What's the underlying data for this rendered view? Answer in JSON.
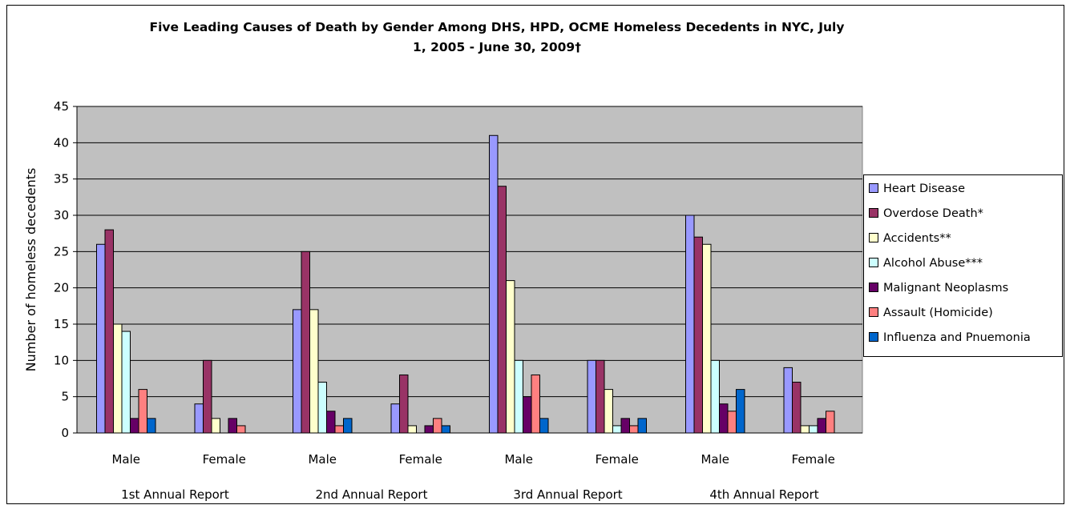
{
  "chart_data": {
    "type": "bar",
    "title_line1": "Five Leading Causes of Death by Gender Among DHS, HPD, OCME Homeless Decedents in NYC, July",
    "title_line2": "1, 2005 -  June 30, 2009†",
    "ylabel": "Number of homeless decedents",
    "xlabel": "",
    "ylim": [
      0,
      45
    ],
    "yticks": [
      0,
      5,
      10,
      15,
      20,
      25,
      30,
      35,
      40,
      45
    ],
    "grid": true,
    "legend_position": "right",
    "groups": [
      "1st Annual Report",
      "2nd Annual Report",
      "3rd Annual Report",
      "4th Annual Report"
    ],
    "subcategories": [
      "Male",
      "Female"
    ],
    "series": [
      {
        "name": "Heart Disease",
        "color": "#9999ff",
        "values": [
          [
            26,
            4
          ],
          [
            17,
            4
          ],
          [
            41,
            10
          ],
          [
            30,
            9
          ]
        ]
      },
      {
        "name": "Overdose Death*",
        "color": "#993366",
        "values": [
          [
            28,
            10
          ],
          [
            25,
            8
          ],
          [
            34,
            10
          ],
          [
            27,
            7
          ]
        ]
      },
      {
        "name": "Accidents**",
        "color": "#ffffcc",
        "values": [
          [
            15,
            2
          ],
          [
            17,
            1
          ],
          [
            21,
            6
          ],
          [
            26,
            1
          ]
        ]
      },
      {
        "name": "Alcohol Abuse***",
        "color": "#ccffff",
        "values": [
          [
            14,
            0
          ],
          [
            7,
            0
          ],
          [
            10,
            1
          ],
          [
            10,
            1
          ]
        ]
      },
      {
        "name": "Malignant Neoplasms",
        "color": "#660066",
        "values": [
          [
            2,
            2
          ],
          [
            3,
            1
          ],
          [
            5,
            2
          ],
          [
            4,
            2
          ]
        ]
      },
      {
        "name": "Assault (Homicide)",
        "color": "#ff8080",
        "values": [
          [
            6,
            1
          ],
          [
            1,
            2
          ],
          [
            8,
            1
          ],
          [
            3,
            3
          ]
        ]
      },
      {
        "name": "Influenza and Pnuemonia",
        "color": "#0066cc",
        "values": [
          [
            2,
            0
          ],
          [
            2,
            1
          ],
          [
            2,
            2
          ],
          [
            6,
            0
          ]
        ]
      }
    ],
    "plot_background": "#c0c0c0"
  }
}
